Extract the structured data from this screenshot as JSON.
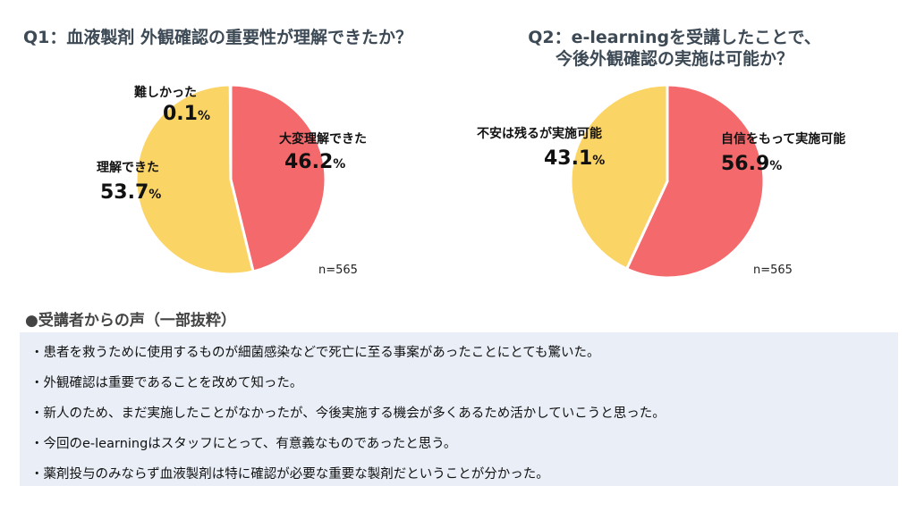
{
  "q1": {
    "title": "Q1：血液製剤 外観確認の重要性が理解できたか？"
  },
  "q2": {
    "title_line1": "Q2：e-learningを受講したことで、",
    "title_line2": "今後外観確認の実施は可能か？"
  },
  "chart_data": [
    {
      "type": "pie",
      "title": "Q1：血液製剤 外観確認の重要性が理解できたか？",
      "slices": [
        {
          "name": "大変理解できた",
          "value": 46.2,
          "color": "#f4696b"
        },
        {
          "name": "理解できた",
          "value": 53.7,
          "color": "#fbd466"
        },
        {
          "name": "難しかった",
          "value": 0.1,
          "color": "#9a9a9a"
        }
      ],
      "n_label": "n=565"
    },
    {
      "type": "pie",
      "title": "Q2：e-learningを受講したことで、今後外観確認の実施は可能か？",
      "slices": [
        {
          "name": "自信をもって実施可能",
          "value": 56.9,
          "color": "#f4696b"
        },
        {
          "name": "不安は残るが実施可能",
          "value": 43.1,
          "color": "#fbd466"
        }
      ],
      "n_label": "n=565"
    }
  ],
  "pct_sign": "%",
  "voices": {
    "title": "●受講者からの声（一部抜粋）",
    "items": [
      "・患者を救うために使用するものが細菌感染などで死亡に至る事案があったことにとても驚いた。",
      "・外観確認は重要であることを改めて知った。",
      "・新人のため、まだ実施したことがなかったが、今後実施する機会が多くあるため活かしていこうと思った。",
      "・今回のe-learningはスタッフにとって、有意義なものであったと思う。",
      "・薬剤投与のみならず血液製剤は特に確認が必要な重要な製剤だということが分かった。"
    ]
  }
}
